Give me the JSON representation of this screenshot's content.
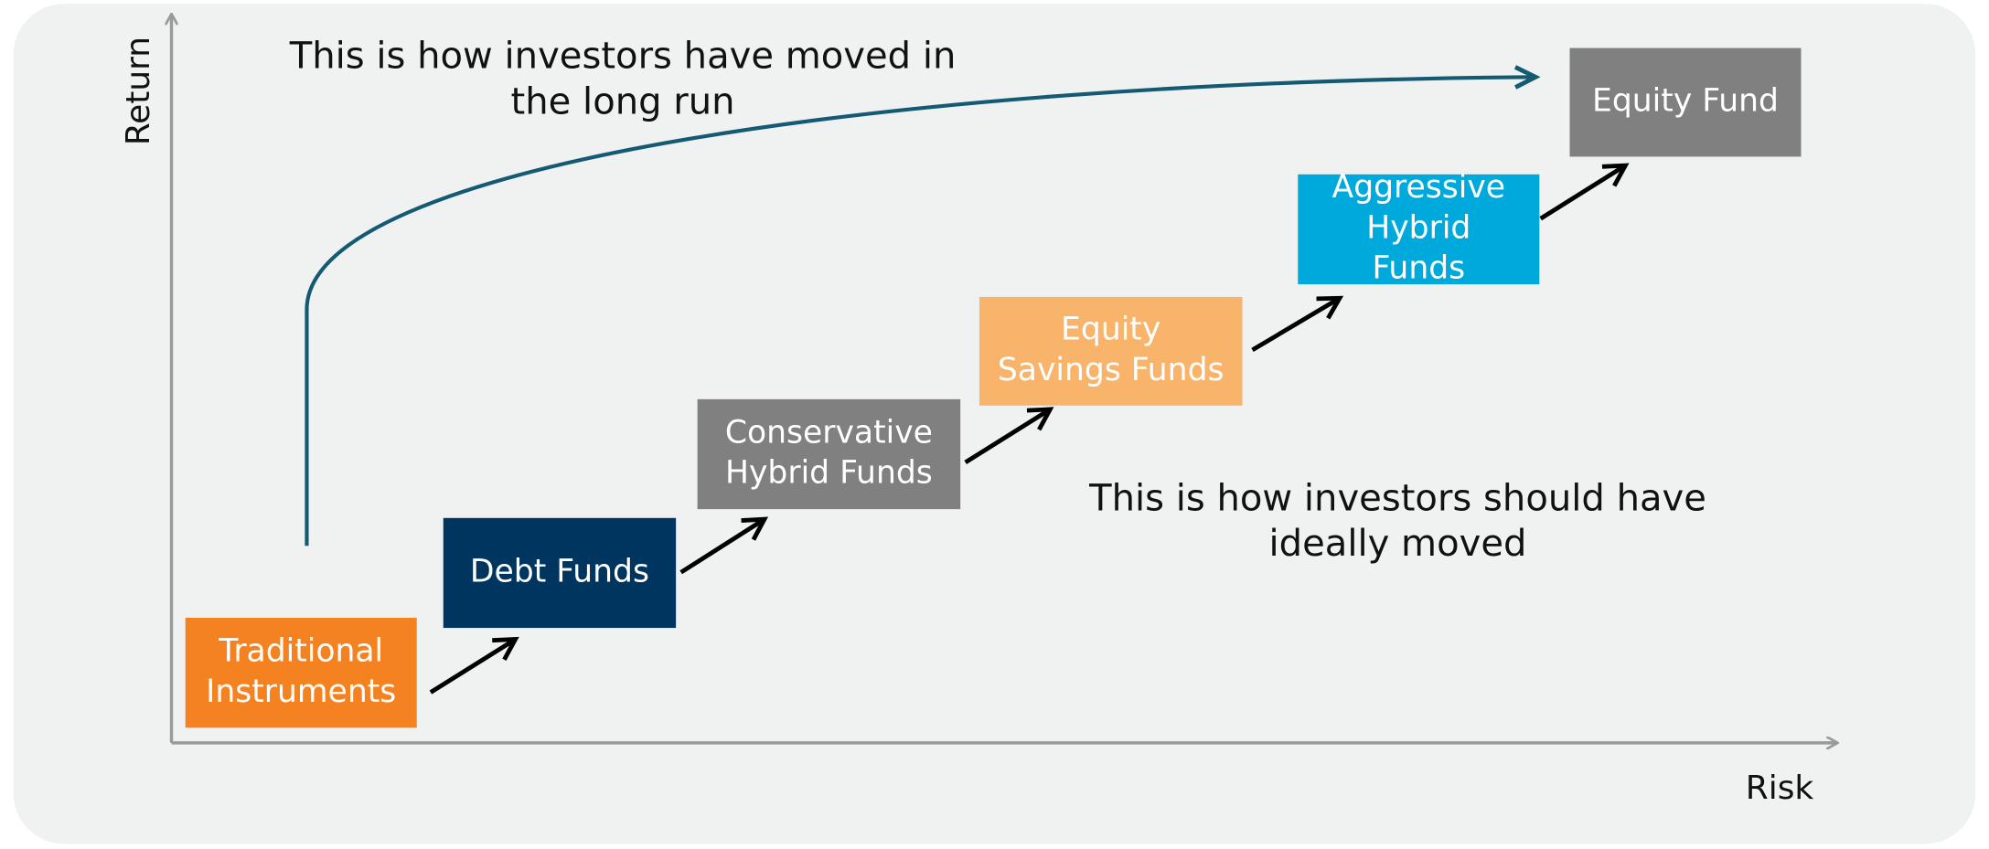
{
  "axes": {
    "y_label": "Return",
    "x_label": "Risk"
  },
  "annotations": [
    {
      "lines": [
        "This is how investors have moved in",
        "the long run"
      ]
    },
    {
      "lines": [
        "This is how investors should have",
        "ideally moved"
      ]
    }
  ],
  "nodes": [
    {
      "lines": [
        "Traditional",
        "Instruments"
      ]
    },
    {
      "lines": [
        "Debt Funds"
      ]
    },
    {
      "lines": [
        "Conservative",
        "Hybrid Funds"
      ]
    },
    {
      "lines": [
        "Equity",
        "Savings Funds"
      ]
    },
    {
      "lines": [
        "Aggressive",
        "Hybrid",
        "Funds"
      ]
    },
    {
      "lines": [
        "Equity Fund"
      ]
    }
  ]
}
